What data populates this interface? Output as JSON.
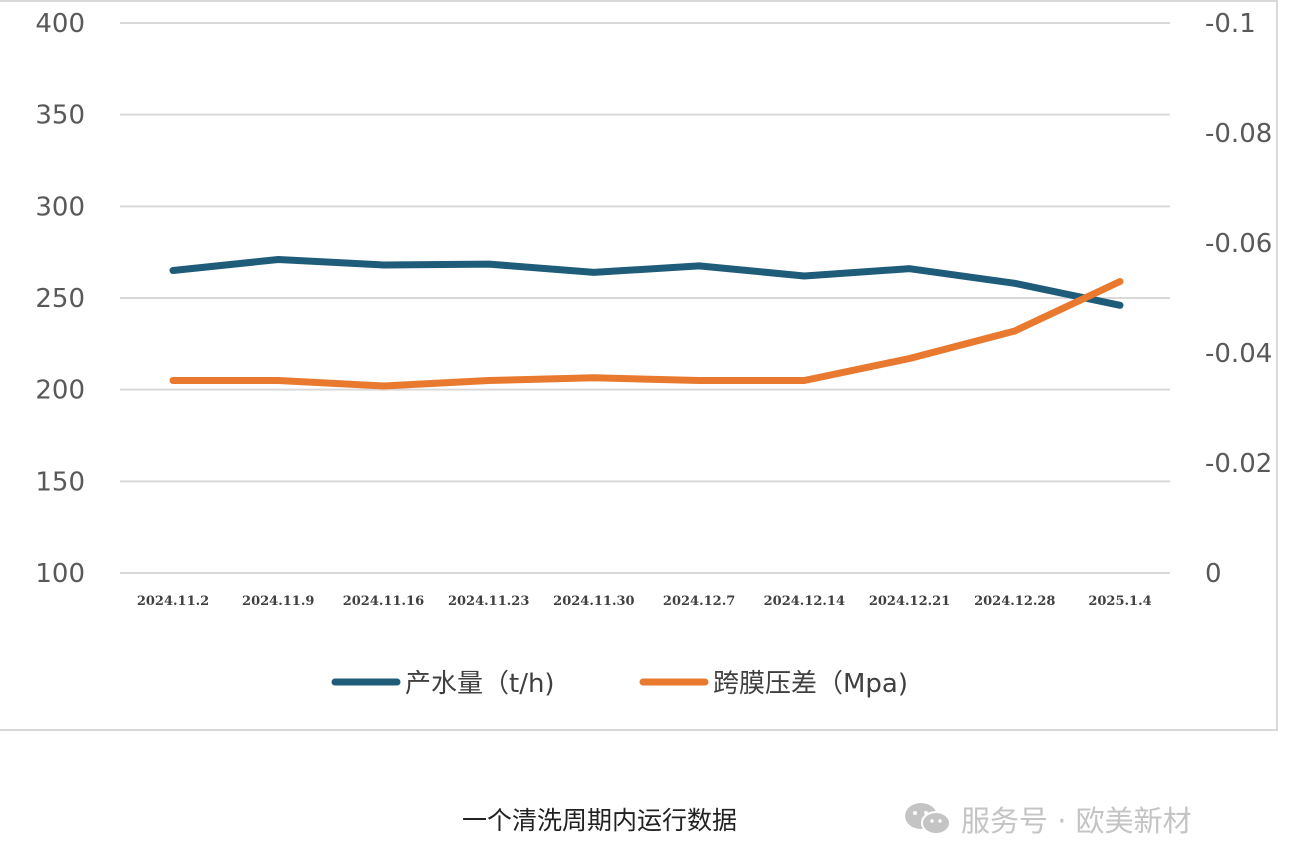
{
  "chart_data": {
    "type": "line",
    "categories": [
      "2024.11.2",
      "2024.11.9",
      "2024.11.16",
      "2024.11.23",
      "2024.11.30",
      "2024.12.7",
      "2024.12.14",
      "2024.12.21",
      "2024.12.28",
      "2025.1.4"
    ],
    "y_left": {
      "min": 100,
      "max": 400,
      "ticks": [
        "400",
        "350",
        "300",
        "250",
        "200",
        "150",
        "100"
      ],
      "tick_values": [
        400,
        350,
        300,
        250,
        200,
        150,
        100
      ]
    },
    "y_right": {
      "min": 0,
      "max": -0.1,
      "ticks": [
        "-0.1",
        "-0.08",
        "-0.06",
        "-0.04",
        "-0.02",
        "0"
      ],
      "tick_values": [
        -0.1,
        -0.08,
        -0.06,
        -0.04,
        -0.02,
        0
      ]
    },
    "grid": true,
    "legend_position": "bottom",
    "series": [
      {
        "name": "产水量（t/h)",
        "axis": "left",
        "color": "#1f5c7a",
        "values": [
          265,
          271,
          268,
          268.5,
          264,
          267.5,
          262,
          266,
          258,
          246
        ]
      },
      {
        "name": "跨膜压差（Mpa)",
        "axis": "right",
        "color": "#e8792f",
        "values": [
          -0.035,
          -0.035,
          -0.034,
          -0.035,
          -0.0355,
          -0.035,
          -0.035,
          -0.039,
          -0.044,
          -0.053
        ]
      }
    ]
  },
  "caption": "一个清洗周期内运行数据",
  "watermark": {
    "icon": "wechat-icon",
    "text": "服务号 · 欧美新材"
  }
}
